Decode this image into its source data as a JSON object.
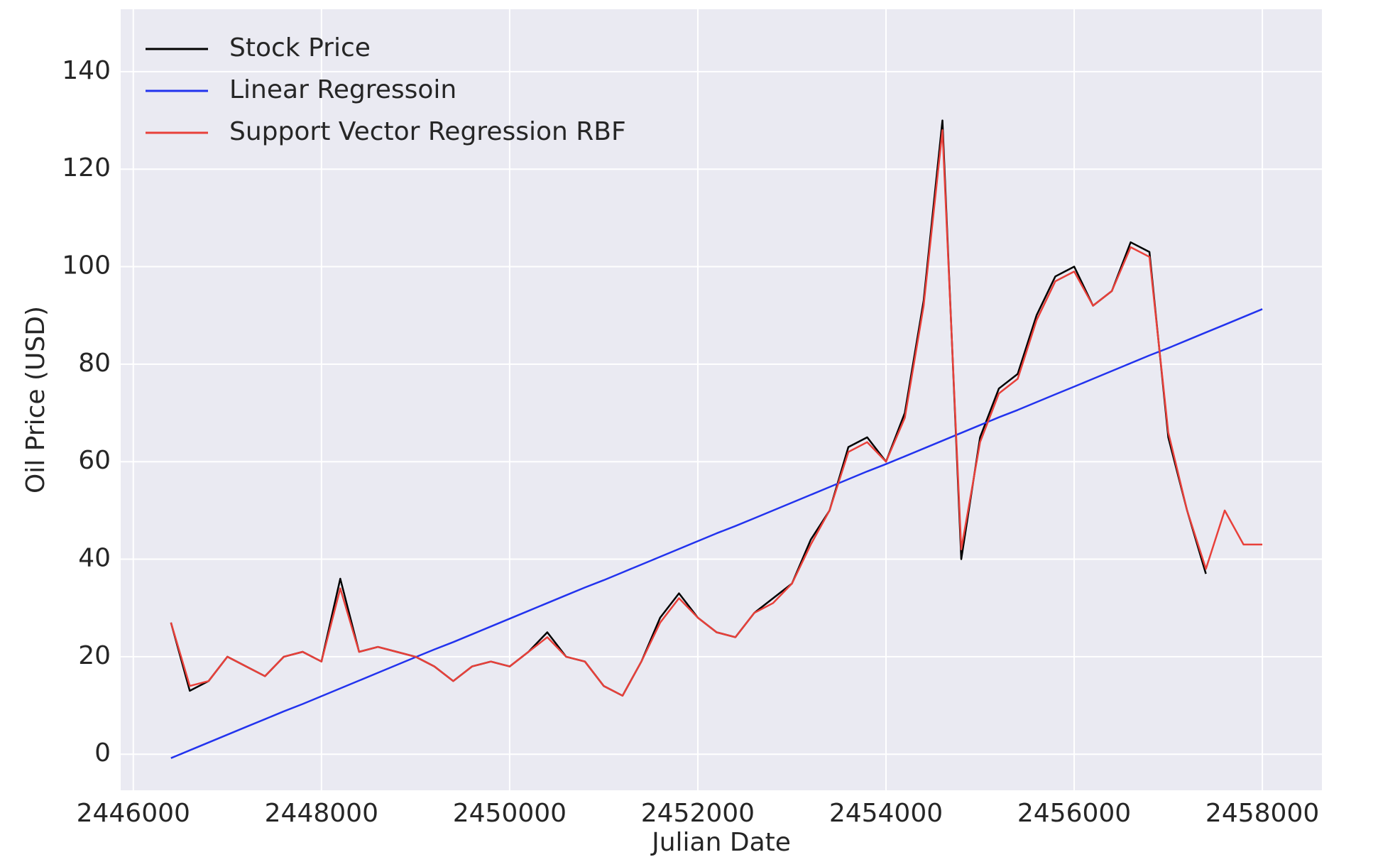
{
  "chart_data": {
    "type": "line",
    "xlabel": "Julian Date",
    "ylabel": "Oil Price (USD)",
    "x": [
      2446400,
      2446600,
      2446800,
      2447000,
      2447200,
      2447400,
      2447600,
      2447800,
      2448000,
      2448200,
      2448400,
      2448600,
      2448800,
      2449000,
      2449200,
      2449400,
      2449600,
      2449800,
      2450000,
      2450200,
      2450400,
      2450600,
      2450800,
      2451000,
      2451200,
      2451400,
      2451600,
      2451800,
      2452000,
      2452200,
      2452400,
      2452600,
      2452800,
      2453000,
      2453200,
      2453400,
      2453600,
      2453800,
      2454000,
      2454200,
      2454400,
      2454600,
      2454800,
      2455000,
      2455200,
      2455400,
      2455600,
      2455800,
      2456000,
      2456200,
      2456400,
      2456600,
      2456800,
      2457000,
      2457200,
      2457400,
      2457600,
      2457800,
      2458000
    ],
    "series": [
      {
        "name": "Stock Price",
        "color": "#000000",
        "values": [
          27,
          13,
          15,
          20,
          18,
          16,
          20,
          21,
          19,
          36,
          21,
          22,
          21,
          20,
          18,
          15,
          18,
          19,
          18,
          21,
          25,
          20,
          19,
          14,
          12,
          19,
          28,
          33,
          28,
          25,
          24,
          29,
          32,
          35,
          44,
          50,
          63,
          65,
          60,
          70,
          93,
          130,
          40,
          65,
          75,
          78,
          90,
          98,
          100,
          92,
          95,
          105,
          103,
          65,
          50,
          37,
          null,
          null,
          null
        ]
      },
      {
        "name": "Linear Regressoin",
        "color": "#2233ee",
        "values": [
          -0.8,
          0.8,
          2.4,
          4.0,
          5.6,
          7.2,
          8.8,
          10.3,
          11.9,
          13.5,
          15.1,
          16.7,
          18.3,
          19.9,
          21.5,
          23.0,
          24.6,
          26.2,
          27.8,
          29.4,
          31.0,
          32.6,
          34.2,
          35.7,
          37.3,
          38.9,
          40.5,
          42.1,
          43.7,
          45.3,
          46.8,
          48.4,
          50.0,
          51.6,
          53.2,
          54.8,
          56.4,
          58.0,
          59.5,
          61.1,
          62.7,
          64.3,
          65.9,
          67.5,
          69.1,
          70.6,
          72.2,
          73.8,
          75.4,
          77.0,
          78.6,
          80.2,
          81.8,
          83.3,
          84.9,
          86.5,
          88.1,
          89.7,
          91.3
        ]
      },
      {
        "name": "Support Vector Regression RBF",
        "color": "#e8403a",
        "values": [
          27,
          14,
          15,
          20,
          18,
          16,
          20,
          21,
          19,
          34,
          21,
          22,
          21,
          20,
          18,
          15,
          18,
          19,
          18,
          21,
          24,
          20,
          19,
          14,
          12,
          19,
          27,
          32,
          28,
          25,
          24,
          29,
          31,
          35,
          43,
          50,
          62,
          64,
          60,
          69,
          92,
          128,
          42,
          64,
          74,
          77,
          89,
          97,
          99,
          92,
          95,
          104,
          102,
          66,
          50,
          38,
          50,
          43,
          43
        ]
      }
    ],
    "xlim": [
      2445866,
      2458633
    ],
    "ylim": [
      -7.4,
      152.8
    ],
    "xticks": [
      2446000,
      2448000,
      2450000,
      2452000,
      2454000,
      2456000,
      2458000
    ],
    "yticks": [
      0,
      20,
      40,
      60,
      80,
      100,
      120,
      140
    ],
    "grid": true,
    "legend": "upper-left"
  }
}
